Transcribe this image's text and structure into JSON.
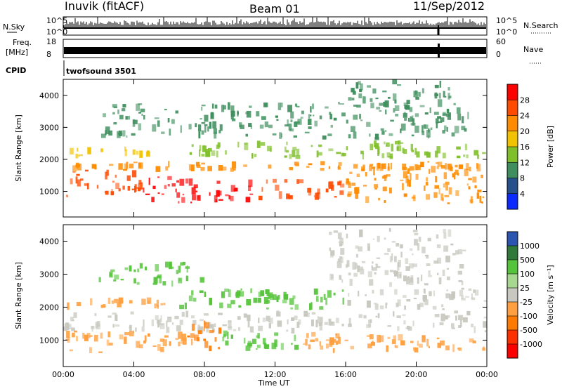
{
  "header": {
    "station": "Inuvik (fitACF)",
    "beam": "Beam 01",
    "date": "11/Sep/2012"
  },
  "strips": {
    "nsky_label": "N.Sky",
    "nsky_ticks": [
      "10^5",
      "10^0"
    ],
    "freq_label_1": "Freq.",
    "freq_label_2": "[MHz]",
    "freq_ticks": [
      "18",
      "8"
    ],
    "nsearch_label": "N.Search",
    "nsearch_ticks": [
      "10^5",
      "10^0"
    ],
    "nave_label": "Nave",
    "nave_ticks": [
      "60",
      "0"
    ],
    "cpid_label": "CPID",
    "cpid_value": "twofsound 3501"
  },
  "chart_data": [
    {
      "type": "heatmap",
      "panel": "power",
      "xlabel": "Time UT",
      "ylabel": "Slant Range [km]",
      "xlim": [
        0,
        24
      ],
      "ylim": [
        200,
        4500
      ],
      "x_ticks": [
        "00:00",
        "04:00",
        "08:00",
        "12:00",
        "16:00",
        "20:00",
        "00:00"
      ],
      "y_ticks": [
        "1000",
        "2000",
        "3000",
        "4000"
      ],
      "colorbar_label": "Power [dB]",
      "colorbar_ticks": [
        "28",
        "24",
        "20",
        "16",
        "12",
        "8",
        "4"
      ],
      "colorbar_colors": [
        "#ff0000",
        "#ff4a00",
        "#ff8c00",
        "#f2c200",
        "#7fbf2a",
        "#3f8f5e",
        "#24508c",
        "#0a2aff"
      ],
      "regions": [
        {
          "t0": 0.0,
          "t1": 4.5,
          "r0": 800,
          "r1": 1700,
          "level": 24
        },
        {
          "t0": 4.5,
          "t1": 8.5,
          "r0": 600,
          "r1": 1500,
          "level": 28
        },
        {
          "t0": 8.5,
          "t1": 11.0,
          "r0": 600,
          "r1": 1400,
          "level": 28
        },
        {
          "t0": 11.0,
          "t1": 16.0,
          "r0": 700,
          "r1": 1400,
          "level": 24
        },
        {
          "t0": 16.0,
          "t1": 24.0,
          "r0": 600,
          "r1": 1900,
          "level": 20
        },
        {
          "t0": 0.0,
          "t1": 24.0,
          "r0": 1600,
          "r1": 1950,
          "level": 20
        },
        {
          "t0": 0.0,
          "t1": 5.0,
          "r0": 2000,
          "r1": 2400,
          "level": 16
        },
        {
          "t0": 7.0,
          "t1": 14.0,
          "r0": 2000,
          "r1": 2600,
          "level": 12
        },
        {
          "t0": 14.0,
          "t1": 24.0,
          "r0": 2000,
          "r1": 2600,
          "level": 12
        },
        {
          "t0": 2.0,
          "t1": 23.0,
          "r0": 2600,
          "r1": 3800,
          "level": 8
        },
        {
          "t0": 16.0,
          "t1": 22.0,
          "r0": 3600,
          "r1": 4500,
          "level": 8
        }
      ]
    },
    {
      "type": "heatmap",
      "panel": "velocity",
      "xlabel": "Time UT",
      "ylabel": "Slant Range [km]",
      "xlim": [
        0,
        24
      ],
      "ylim": [
        200,
        4500
      ],
      "x_ticks": [
        "00:00",
        "04:00",
        "08:00",
        "12:00",
        "16:00",
        "20:00",
        "00:00"
      ],
      "y_ticks": [
        "1000",
        "2000",
        "3000",
        "4000"
      ],
      "colorbar_label": "Velocity [m s⁻¹]",
      "colorbar_ticks": [
        "1000",
        "500",
        "100",
        "25",
        "-25",
        "-100",
        "-500",
        "-1000"
      ],
      "colorbar_colors": [
        "#2a55b0",
        "#2f7a3a",
        "#55c43a",
        "#a8d890",
        "#c8c8c0",
        "#ffa040",
        "#ff7a00",
        "#ff3000",
        "#ff0000"
      ],
      "regions": [
        {
          "t0": 0.0,
          "t1": 24.0,
          "r0": 1200,
          "r1": 1900,
          "level": 0
        },
        {
          "t0": 0.0,
          "t1": 7.0,
          "r0": 600,
          "r1": 1300,
          "level": -100
        },
        {
          "t0": 7.0,
          "t1": 9.0,
          "r0": 600,
          "r1": 1600,
          "level": -500
        },
        {
          "t0": 9.0,
          "t1": 13.5,
          "r0": 600,
          "r1": 1300,
          "level": 100
        },
        {
          "t0": 13.5,
          "t1": 17.0,
          "r0": 600,
          "r1": 1300,
          "level": -100
        },
        {
          "t0": 17.0,
          "t1": 24.0,
          "r0": 600,
          "r1": 1200,
          "level": -100
        },
        {
          "t0": 0.0,
          "t1": 6.0,
          "r0": 1900,
          "r1": 2300,
          "level": -100
        },
        {
          "t0": 6.0,
          "t1": 16.0,
          "r0": 1900,
          "r1": 2600,
          "level": 100
        },
        {
          "t0": 16.0,
          "t1": 24.0,
          "r0": 1900,
          "r1": 2600,
          "level": 0
        },
        {
          "t0": 2.0,
          "t1": 8.0,
          "r0": 2600,
          "r1": 3400,
          "level": 100
        },
        {
          "t0": 15.0,
          "t1": 23.0,
          "r0": 2600,
          "r1": 4400,
          "level": 0
        }
      ]
    }
  ]
}
